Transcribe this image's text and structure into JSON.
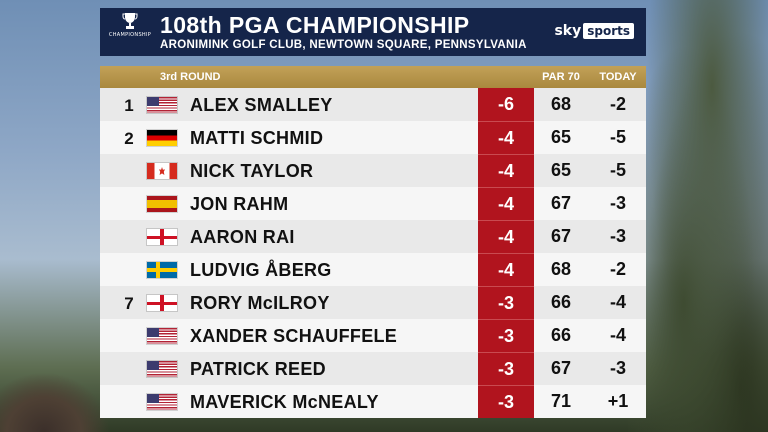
{
  "header": {
    "title": "108th PGA CHAMPIONSHIP",
    "subtitle": "ARONIMINK GOLF CLUB, NEWTOWN SQUARE, PENNSYLVANIA",
    "logo_text": "CHAMPIONSHIP",
    "brand_sky": "sky",
    "brand_sports": "sports"
  },
  "columns": {
    "round": "3rd ROUND",
    "par": "PAR 70",
    "today": "TODAY"
  },
  "colors": {
    "header_bg": "#15254a",
    "gold": "#b8964a",
    "total_bg": "#b1141e"
  },
  "rows": [
    {
      "pos": "1",
      "flag": "us-flag-icon",
      "name": "ALEX SMALLEY",
      "total": "-6",
      "par": "68",
      "today": "-2"
    },
    {
      "pos": "2",
      "flag": "germany-flag-icon",
      "name": "MATTI SCHMID",
      "total": "-4",
      "par": "65",
      "today": "-5"
    },
    {
      "pos": "",
      "flag": "canada-flag-icon",
      "name": "NICK TAYLOR",
      "total": "-4",
      "par": "65",
      "today": "-5"
    },
    {
      "pos": "",
      "flag": "spain-flag-icon",
      "name": "JON RAHM",
      "total": "-4",
      "par": "67",
      "today": "-3"
    },
    {
      "pos": "",
      "flag": "england-flag-icon",
      "name": "AARON RAI",
      "total": "-4",
      "par": "67",
      "today": "-3"
    },
    {
      "pos": "",
      "flag": "sweden-flag-icon",
      "name": "LUDVIG ÅBERG",
      "total": "-4",
      "par": "68",
      "today": "-2"
    },
    {
      "pos": "7",
      "flag": "england-flag-icon",
      "name": "RORY McILROY",
      "total": "-3",
      "par": "66",
      "today": "-4"
    },
    {
      "pos": "",
      "flag": "us-flag-icon",
      "name": "XANDER SCHAUFFELE",
      "total": "-3",
      "par": "66",
      "today": "-4"
    },
    {
      "pos": "",
      "flag": "us-flag-icon",
      "name": "PATRICK REED",
      "total": "-3",
      "par": "67",
      "today": "-3"
    },
    {
      "pos": "",
      "flag": "us-flag-icon",
      "name": "MAVERICK McNEALY",
      "total": "-3",
      "par": "71",
      "today": "+1"
    }
  ]
}
